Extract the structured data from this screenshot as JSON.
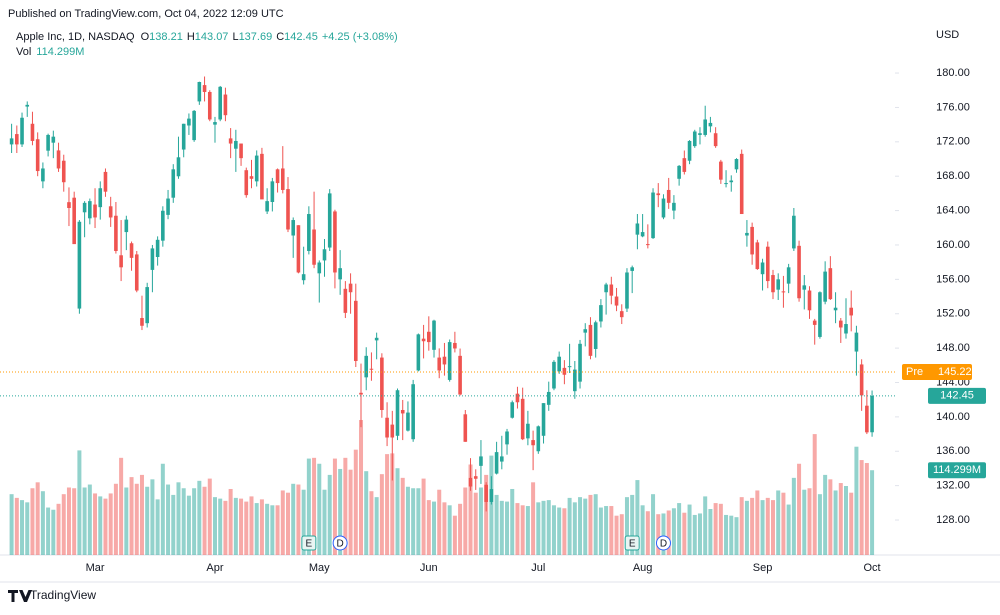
{
  "chart_data": {
    "type": "candlestick",
    "published": "Published on TradingView.com, Oct 04, 2022 12:09 UTC",
    "symbol": "Apple Inc, 1D, NASDAQ",
    "open_prefix": "O",
    "high_prefix": "H",
    "low_prefix": "L",
    "close_prefix": "C",
    "change": "+4.25 (+3.08%)",
    "volume_prefix": "Vol",
    "volume_label": "114.299M",
    "currency": "USD",
    "brand": "TradingView",
    "up_color": "#26a69a",
    "down_color": "#ef5350",
    "pre": {
      "label": "Pre",
      "value": 145.22,
      "color": "#ff9800"
    },
    "grid": false,
    "ylim": [
      123.93,
      188.5
    ],
    "yticks": [
      {
        "value": 128,
        "label": "128.00"
      },
      {
        "value": 132,
        "label": "132.00"
      },
      {
        "value": 136,
        "label": "136.00"
      },
      {
        "value": 140,
        "label": "140.00"
      },
      {
        "value": 144,
        "label": "144.00"
      },
      {
        "value": 148,
        "label": "148.00"
      },
      {
        "value": 152,
        "label": "152.00"
      },
      {
        "value": 156,
        "label": "156.00"
      },
      {
        "value": 160,
        "label": "160.00"
      },
      {
        "value": 164,
        "label": "164.00"
      },
      {
        "value": 168,
        "label": "168.00"
      },
      {
        "value": 172,
        "label": "172.00"
      },
      {
        "value": 176,
        "label": "176.00"
      },
      {
        "value": 180,
        "label": "180.00"
      }
    ],
    "events": [
      {
        "label": "E",
        "index": 57
      },
      {
        "label": "D",
        "index": 63
      },
      {
        "label": "E",
        "index": 119
      },
      {
        "label": "D",
        "index": 125
      }
    ],
    "categories": [
      null,
      null,
      null,
      null,
      null,
      null,
      null,
      null,
      null,
      null,
      null,
      null,
      null,
      null,
      null,
      null,
      "Mar",
      null,
      null,
      null,
      null,
      null,
      null,
      null,
      null,
      null,
      null,
      null,
      null,
      null,
      null,
      null,
      null,
      null,
      null,
      null,
      null,
      null,
      null,
      "Apr",
      null,
      null,
      null,
      null,
      null,
      null,
      null,
      null,
      null,
      null,
      null,
      null,
      null,
      null,
      null,
      null,
      null,
      null,
      null,
      "May",
      null,
      null,
      null,
      null,
      null,
      null,
      null,
      null,
      null,
      null,
      null,
      null,
      null,
      null,
      null,
      null,
      null,
      null,
      null,
      null,
      "Jun",
      null,
      null,
      null,
      null,
      null,
      null,
      null,
      null,
      null,
      null,
      null,
      null,
      null,
      null,
      null,
      null,
      null,
      null,
      null,
      null,
      "Jul",
      null,
      null,
      null,
      null,
      null,
      null,
      null,
      null,
      null,
      null,
      null,
      null,
      null,
      null,
      null,
      null,
      null,
      null,
      null,
      "Aug",
      null,
      null,
      null,
      null,
      null,
      null,
      null,
      null,
      null,
      null,
      null,
      null,
      null,
      null,
      null,
      null,
      null,
      null,
      null,
      null,
      null,
      null,
      "Sep",
      null,
      null,
      null,
      null,
      null,
      null,
      null,
      null,
      null,
      null,
      null,
      null,
      null,
      null,
      null,
      null,
      null,
      null,
      null,
      null,
      "Oct"
    ],
    "ohlcv": [
      [
        171.7,
        174.1,
        170.7,
        172.4,
        82
      ],
      [
        172.9,
        173.9,
        170.7,
        171.7,
        77
      ],
      [
        171.7,
        175.4,
        171.4,
        174.8,
        74
      ],
      [
        176.1,
        176.7,
        174.9,
        176.3,
        71
      ],
      [
        174.1,
        175.5,
        171.6,
        172.1,
        90
      ],
      [
        172.3,
        173.1,
        168.0,
        168.6,
        98
      ],
      [
        167.4,
        169.6,
        166.6,
        168.9,
        86
      ],
      [
        170.97,
        172.95,
        170.3,
        172.8,
        64
      ],
      [
        171.9,
        173.3,
        170.1,
        172.6,
        61
      ],
      [
        171.0,
        171.9,
        168.5,
        168.9,
        69
      ],
      [
        169.8,
        170.5,
        166.2,
        167.3,
        82
      ],
      [
        164.98,
        166.7,
        162.2,
        164.3,
        91
      ],
      [
        165.5,
        166.2,
        160.9,
        160.1,
        90
      ],
      [
        152.6,
        162.9,
        152.0,
        162.7,
        141
      ],
      [
        163.8,
        165.1,
        160.9,
        164.9,
        91
      ],
      [
        163.1,
        165.4,
        162.4,
        165.1,
        95
      ],
      [
        164.7,
        166.6,
        161.97,
        163.2,
        83
      ],
      [
        164.4,
        167.4,
        162.95,
        166.6,
        79
      ],
      [
        168.5,
        168.9,
        165.6,
        166.2,
        76
      ],
      [
        164.5,
        165.6,
        162.1,
        163.2,
        83
      ],
      [
        163.4,
        165.0,
        159.0,
        159.3,
        96
      ],
      [
        158.8,
        162.9,
        155.8,
        157.4,
        131
      ],
      [
        161.5,
        163.4,
        159.4,
        162.95,
        91
      ],
      [
        160.2,
        160.4,
        157.0,
        158.5,
        105
      ],
      [
        158.9,
        159.3,
        154.5,
        154.7,
        96
      ],
      [
        151.5,
        154.1,
        150.1,
        150.6,
        108
      ],
      [
        150.9,
        155.6,
        150.4,
        155.1,
        92
      ],
      [
        157.1,
        160.0,
        154.5,
        159.6,
        102
      ],
      [
        158.6,
        161.0,
        157.6,
        160.6,
        75
      ],
      [
        160.5,
        164.5,
        159.8,
        163.98,
        123
      ],
      [
        163.5,
        166.4,
        163.0,
        165.4,
        95
      ],
      [
        165.5,
        169.4,
        164.9,
        168.8,
        81
      ],
      [
        167.99,
        172.6,
        167.7,
        170.2,
        98
      ],
      [
        171.1,
        174.1,
        170.2,
        174.1,
        90
      ],
      [
        173.9,
        175.3,
        172.8,
        174.7,
        80
      ],
      [
        172.2,
        175.7,
        172.0,
        175.6,
        90
      ],
      [
        176.7,
        179.0,
        176.3,
        178.96,
        100
      ],
      [
        178.6,
        179.6,
        176.7,
        177.8,
        92
      ],
      [
        177.8,
        178.0,
        174.4,
        174.6,
        103
      ],
      [
        174.0,
        174.9,
        171.9,
        174.3,
        78
      ],
      [
        174.6,
        178.5,
        174.4,
        178.4,
        76
      ],
      [
        177.5,
        178.3,
        174.4,
        175.1,
        73
      ],
      [
        172.4,
        173.6,
        170.1,
        171.8,
        89
      ],
      [
        171.2,
        173.4,
        168.5,
        172.1,
        77
      ],
      [
        171.8,
        171.8,
        169.2,
        170.1,
        76
      ],
      [
        168.7,
        169.0,
        165.5,
        165.8,
        72
      ],
      [
        168.0,
        169.9,
        166.6,
        167.7,
        79
      ],
      [
        167.4,
        171.0,
        166.8,
        170.4,
        70
      ],
      [
        170.6,
        171.3,
        165.4,
        165.3,
        75
      ],
      [
        163.9,
        166.6,
        163.6,
        165.1,
        69
      ],
      [
        165.0,
        167.8,
        163.9,
        167.4,
        67
      ],
      [
        168.8,
        168.9,
        166.1,
        167.2,
        67
      ],
      [
        168.9,
        171.5,
        166.0,
        166.4,
        87
      ],
      [
        166.5,
        167.9,
        161.5,
        161.8,
        84
      ],
      [
        161.1,
        163.2,
        158.5,
        162.9,
        96
      ],
      [
        162.3,
        162.3,
        156.7,
        156.8,
        95
      ],
      [
        155.9,
        159.8,
        155.4,
        156.6,
        88
      ],
      [
        159.3,
        164.5,
        158.9,
        163.6,
        130
      ],
      [
        161.8,
        166.2,
        157.3,
        157.7,
        131
      ],
      [
        156.7,
        158.2,
        153.3,
        157.96,
        123
      ],
      [
        158.2,
        160.7,
        156.3,
        159.5,
        88
      ],
      [
        159.7,
        166.5,
        159.3,
        166.0,
        108
      ],
      [
        163.9,
        164.1,
        154.95,
        156.8,
        130
      ],
      [
        156.0,
        159.4,
        154.2,
        157.3,
        116
      ],
      [
        154.9,
        155.8,
        151.5,
        152.1,
        131
      ],
      [
        155.5,
        156.7,
        152.0,
        154.5,
        115
      ],
      [
        153.5,
        155.5,
        145.8,
        146.5,
        142
      ],
      [
        142.8,
        146.2,
        138.8,
        142.6,
        182
      ],
      [
        144.6,
        148.1,
        143.1,
        147.1,
        113
      ],
      [
        145.6,
        147.5,
        144.2,
        145.5,
        86
      ],
      [
        148.9,
        149.8,
        146.7,
        149.2,
        78
      ],
      [
        146.9,
        147.4,
        139.9,
        140.8,
        109
      ],
      [
        139.9,
        141.7,
        136.6,
        137.6,
        136
      ],
      [
        139.1,
        140.7,
        132.6,
        137.6,
        137
      ],
      [
        137.8,
        143.3,
        137.3,
        143.1,
        117
      ],
      [
        140.8,
        141.97,
        137.3,
        140.4,
        104
      ],
      [
        138.4,
        141.8,
        138.3,
        140.5,
        92
      ],
      [
        137.4,
        144.3,
        137.1,
        143.8,
        90
      ],
      [
        145.4,
        149.7,
        145.3,
        149.6,
        90
      ],
      [
        149.1,
        150.7,
        146.8,
        148.8,
        103
      ],
      [
        149.9,
        151.7,
        147.7,
        148.7,
        74
      ],
      [
        147.8,
        151.3,
        146.9,
        151.2,
        72
      ],
      [
        146.9,
        147.97,
        144.5,
        145.4,
        88
      ],
      [
        147.0,
        148.6,
        144.8,
        146.1,
        71
      ],
      [
        144.3,
        149.0,
        144.1,
        148.7,
        67
      ],
      [
        148.6,
        149.9,
        147.5,
        147.96,
        53
      ],
      [
        147.1,
        147.95,
        142.5,
        142.6,
        69
      ],
      [
        140.3,
        140.8,
        137.1,
        137.1,
        91
      ],
      [
        132.9,
        135.2,
        131.4,
        131.9,
        122
      ],
      [
        133.1,
        133.9,
        131.5,
        132.8,
        84
      ],
      [
        134.3,
        137.3,
        132.2,
        135.4,
        91
      ],
      [
        132.1,
        132.4,
        129.0,
        130.1,
        108
      ],
      [
        130.1,
        133.1,
        129.8,
        131.6,
        134
      ],
      [
        133.4,
        137.1,
        133.3,
        135.9,
        81
      ],
      [
        134.8,
        137.8,
        133.9,
        135.4,
        73
      ],
      [
        136.8,
        138.6,
        135.6,
        138.3,
        72
      ],
      [
        139.9,
        141.9,
        139.8,
        141.7,
        89
      ],
      [
        142.7,
        143.5,
        140.97,
        141.7,
        70
      ],
      [
        142.1,
        143.4,
        137.3,
        137.4,
        67
      ],
      [
        137.5,
        140.7,
        136.7,
        139.2,
        66
      ],
      [
        137.3,
        138.4,
        133.8,
        136.7,
        98
      ],
      [
        136.0,
        139.0,
        135.7,
        138.9,
        71
      ],
      [
        137.8,
        141.6,
        136.9,
        141.6,
        73
      ],
      [
        141.4,
        144.1,
        140.7,
        142.9,
        74
      ],
      [
        143.3,
        146.6,
        143.1,
        146.4,
        67
      ],
      [
        145.3,
        147.6,
        145.0,
        147.0,
        64
      ],
      [
        145.7,
        146.6,
        143.8,
        144.9,
        63
      ],
      [
        145.8,
        148.5,
        145.1,
        145.9,
        77
      ],
      [
        142.99,
        146.5,
        142.1,
        145.5,
        71
      ],
      [
        144.1,
        148.95,
        143.3,
        148.5,
        78
      ],
      [
        149.8,
        150.9,
        148.2,
        150.2,
        76
      ],
      [
        150.7,
        151.6,
        146.7,
        147.1,
        81
      ],
      [
        147.9,
        151.2,
        146.9,
        151.0,
        82
      ],
      [
        151.1,
        153.7,
        150.4,
        153.0,
        64
      ],
      [
        154.5,
        155.6,
        151.9,
        155.4,
        66
      ],
      [
        155.4,
        156.3,
        153.1,
        154.1,
        66
      ],
      [
        154.0,
        155.0,
        152.3,
        152.95,
        53
      ],
      [
        152.3,
        153.1,
        150.8,
        151.6,
        55
      ],
      [
        152.6,
        157.3,
        152.2,
        156.8,
        78
      ],
      [
        156.98,
        157.6,
        154.4,
        157.4,
        81
      ],
      [
        161.2,
        163.6,
        159.5,
        162.5,
        101
      ],
      [
        161.0,
        163.6,
        160.9,
        161.5,
        67
      ],
      [
        160.1,
        162.4,
        159.6,
        160.0,
        59
      ],
      [
        160.8,
        166.6,
        160.7,
        166.1,
        82
      ],
      [
        166.0,
        167.2,
        164.4,
        165.8,
        55
      ],
      [
        163.2,
        165.9,
        163.0,
        165.4,
        56
      ],
      [
        166.4,
        167.8,
        164.2,
        164.9,
        60
      ],
      [
        164.0,
        165.8,
        163.0,
        164.9,
        63
      ],
      [
        167.7,
        169.3,
        166.9,
        169.2,
        70
      ],
      [
        170.1,
        170.99,
        168.2,
        168.5,
        57
      ],
      [
        169.8,
        172.2,
        169.4,
        172.1,
        68
      ],
      [
        171.5,
        173.4,
        171.3,
        173.2,
        54
      ],
      [
        172.8,
        173.7,
        171.7,
        173.0,
        56
      ],
      [
        172.8,
        176.2,
        172.6,
        174.6,
        79
      ],
      [
        173.8,
        174.9,
        173.1,
        174.2,
        62
      ],
      [
        173.0,
        173.7,
        171.3,
        171.5,
        70
      ],
      [
        169.7,
        169.9,
        167.1,
        167.6,
        69
      ],
      [
        167.1,
        168.7,
        166.7,
        167.2,
        54
      ],
      [
        167.3,
        168.1,
        166.2,
        167.5,
        53
      ],
      [
        168.8,
        170.1,
        168.4,
        170.0,
        51
      ],
      [
        170.6,
        171.1,
        163.6,
        163.6,
        78
      ],
      [
        161.1,
        162.9,
        159.8,
        161.4,
        73
      ],
      [
        162.1,
        162.6,
        157.7,
        158.9,
        77
      ],
      [
        160.3,
        160.6,
        157.1,
        157.2,
        87
      ],
      [
        156.6,
        158.4,
        154.7,
        157.96,
        74
      ],
      [
        159.8,
        160.4,
        154.97,
        155.8,
        77
      ],
      [
        156.5,
        157.1,
        153.7,
        154.5,
        74
      ],
      [
        154.8,
        156.7,
        153.6,
        156.0,
        87
      ],
      [
        154.6,
        156.4,
        152.7,
        154.5,
        84
      ],
      [
        155.5,
        157.8,
        154.4,
        157.4,
        68
      ],
      [
        159.6,
        164.3,
        159.3,
        163.4,
        104
      ],
      [
        159.9,
        160.5,
        153.4,
        153.8,
        123
      ],
      [
        154.8,
        156.5,
        152.5,
        155.3,
        88
      ],
      [
        154.7,
        155.2,
        151.4,
        152.4,
        90
      ],
      [
        151.2,
        151.4,
        148.4,
        150.7,
        163
      ],
      [
        149.3,
        154.6,
        149.1,
        154.5,
        82
      ],
      [
        153.4,
        158.1,
        153.1,
        156.9,
        108
      ],
      [
        157.3,
        158.7,
        153.6,
        153.7,
        102
      ],
      [
        152.4,
        154.5,
        150.9,
        152.7,
        87
      ],
      [
        151.2,
        151.5,
        148.6,
        150.4,
        97
      ],
      [
        149.7,
        153.8,
        149.1,
        150.8,
        93
      ],
      [
        152.7,
        154.7,
        149.95,
        151.8,
        84
      ],
      [
        147.6,
        150.6,
        144.8,
        149.8,
        146
      ],
      [
        146.1,
        146.7,
        140.7,
        142.5,
        128
      ],
      [
        141.3,
        143.1,
        138.0,
        138.2,
        124
      ],
      [
        138.21,
        143.07,
        137.69,
        142.45,
        114.299
      ]
    ]
  }
}
